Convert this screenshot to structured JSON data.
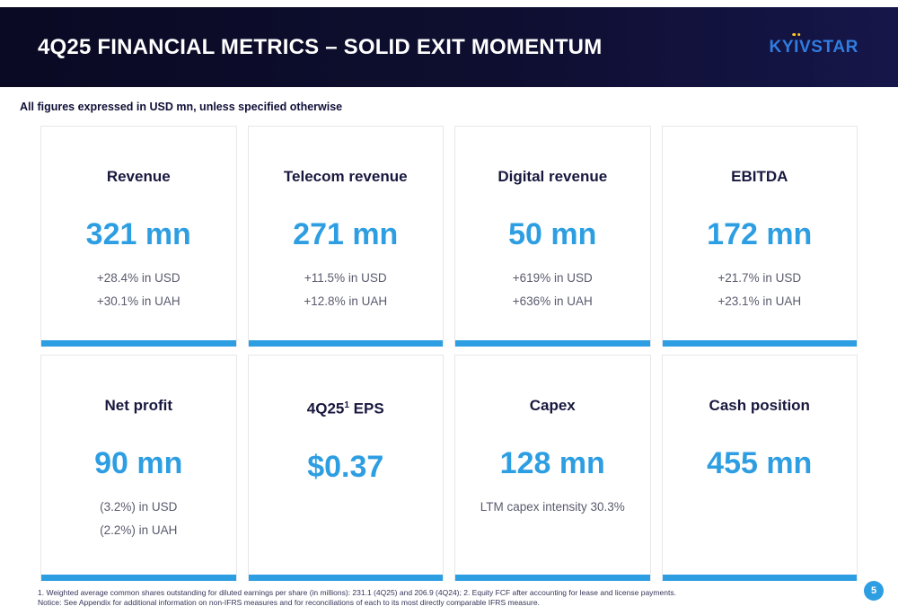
{
  "header": {
    "title": "4Q25 FINANCIAL METRICS – SOLID EXIT MOMENTUM",
    "logo": {
      "left": "KY",
      "i": "I",
      "right": "VSTAR"
    }
  },
  "subtitle": "All figures expressed in USD mn, unless specified otherwise",
  "cards": [
    {
      "title": "Revenue",
      "value": "321 mn",
      "lines": [
        "+28.4% in USD",
        "+30.1% in UAH"
      ]
    },
    {
      "title": "Telecom revenue",
      "value": "271 mn",
      "lines": [
        "+11.5% in USD",
        "+12.8% in UAH"
      ]
    },
    {
      "title": "Digital revenue",
      "value": "50 mn",
      "lines": [
        "+619% in USD",
        "+636% in UAH"
      ]
    },
    {
      "title": "EBITDA",
      "value": "172 mn",
      "lines": [
        "+21.7% in USD",
        "+23.1% in UAH"
      ]
    },
    {
      "title": "Net profit",
      "value": "90 mn",
      "lines": [
        "(3.2%) in USD",
        "(2.2%) in UAH"
      ]
    },
    {
      "title": "4Q25",
      "title_sup": "1",
      "title_suffix": " EPS",
      "value": "$0.37",
      "lines": []
    },
    {
      "title": "Capex",
      "value": "128 mn",
      "lines": [
        "LTM capex intensity 30.3%"
      ]
    },
    {
      "title": "Cash position",
      "value": "455 mn",
      "lines": []
    }
  ],
  "footnotes": {
    "line1": "1. Weighted average common shares outstanding for diluted earnings per share (in millions): 231.1 (4Q25) and 206.9 (4Q24); 2. Equity FCF after accounting for lease and license payments.",
    "line2": "Notice: See Appendix for additional information on non-IFRS measures and for reconciliations of each to its most directly comparable IFRS measure."
  },
  "page_number": "5",
  "colors": {
    "accent_blue": "#2e9ee2",
    "header_navy": "#0e0e30",
    "logo_blue": "#2f7de1",
    "logo_yellow": "#ffc81e"
  }
}
